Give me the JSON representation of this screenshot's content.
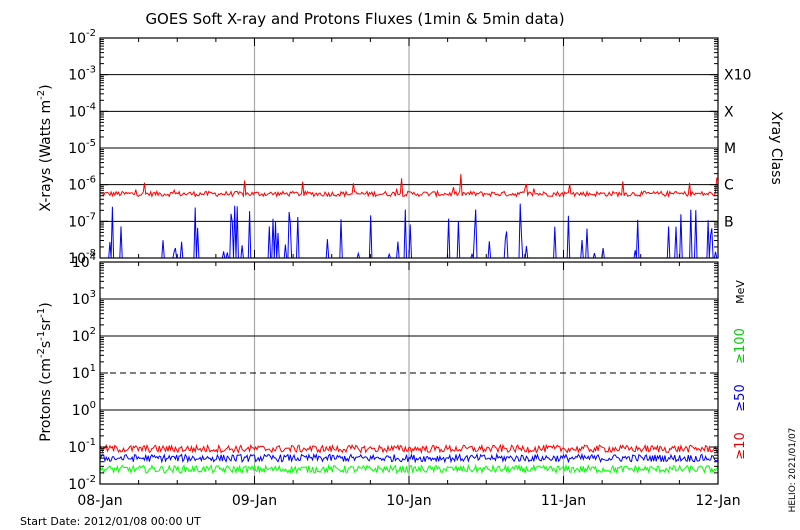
{
  "title": "GOES Soft X-ray and Protons Fluxes   (1min & 5min data)",
  "start_date": "Start Date: 2012/01/08 00:00 UT",
  "helio_credit": "HELIO: 2021/01/07",
  "chart_data": [
    {
      "type": "line",
      "panel": "xray",
      "ylabel_prefix": "X-rays (Watts m",
      "ylabel_exp": "-2",
      "ylabel_suffix": ")",
      "yscale": "log",
      "ylim_exp": [
        -8,
        -2
      ],
      "ytick_exponents": [
        -8,
        -7,
        -6,
        -5,
        -4,
        -3,
        -2
      ],
      "right_title": "Xray Class",
      "class_labels": [
        {
          "label": "X10",
          "exp": -3
        },
        {
          "label": "X",
          "exp": -4
        },
        {
          "label": "M",
          "exp": -5
        },
        {
          "label": "C",
          "exp": -6
        },
        {
          "label": "B",
          "exp": -7
        }
      ],
      "grid_exponents": [
        -7,
        -6,
        -5,
        -4,
        -3
      ],
      "series": [
        {
          "color": "#ff0000",
          "base_exp": -6.25,
          "noise": 0.07
        },
        {
          "color": "#0000ff",
          "base_exp": -8.2,
          "noise": 0.3
        }
      ]
    },
    {
      "type": "line",
      "panel": "protons",
      "ylabel_prefix": "Protons (cm",
      "ylabel_exp1": "-2",
      "ylabel_mid1": "s",
      "ylabel_exp2": "-1",
      "ylabel_mid2": "sr",
      "ylabel_exp3": "-1",
      "ylabel_suffix": ")",
      "yscale": "log",
      "ylim_exp": [
        -2,
        4
      ],
      "ytick_exponents": [
        -2,
        -1,
        0,
        1,
        2,
        3,
        4
      ],
      "grid_exponents": [
        0,
        2,
        3
      ],
      "dashed_exponent": 1,
      "energy_unit": "MeV",
      "series": [
        {
          "name": "≥100",
          "color": "#00ff00",
          "base_exp": -1.6,
          "noise": 0.1
        },
        {
          "name": "≥50",
          "color": "#0000ff",
          "base_exp": -1.3,
          "noise": 0.1
        },
        {
          "name": "≥10",
          "color": "#ff0000",
          "base_exp": -1.05,
          "noise": 0.1
        }
      ]
    }
  ],
  "x_axis": {
    "tick_labels": [
      "08-Jan",
      "09-Jan",
      "10-Jan",
      "11-Jan",
      "12-Jan"
    ],
    "days": 4
  }
}
